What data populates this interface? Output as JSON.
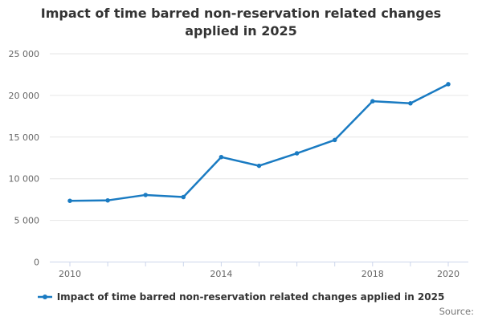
{
  "title": "Impact of time barred non-reservation related changes applied in 2025",
  "legend": {
    "label": "Impact of time barred non-reservation related changes applied in 2025"
  },
  "source_label": "Source:",
  "colors": {
    "line": "#1a7bc2",
    "grid": "#e6e6e6",
    "axis": "#ccd6eb",
    "tick_label": "#666666",
    "title": "#333333",
    "legend_text": "#333333",
    "source": "#777777"
  },
  "chart_data": {
    "type": "line",
    "title": "Impact of time barred non-reservation related changes applied in 2025",
    "x": [
      2010,
      2011,
      2012,
      2013,
      2014,
      2015,
      2016,
      2017,
      2018,
      2019,
      2020
    ],
    "series": [
      {
        "name": "Impact of time barred non-reservation related changes applied in 2025",
        "values": [
          7350,
          7400,
          8050,
          7800,
          12600,
          11550,
          13050,
          14650,
          19300,
          19050,
          21350
        ]
      }
    ],
    "xlabel": "",
    "ylabel": "",
    "ylim": [
      0,
      25000
    ],
    "yticks": [
      0,
      5000,
      10000,
      15000,
      20000,
      25000
    ],
    "ytick_labels": [
      "0",
      "5 000",
      "10 000",
      "15 000",
      "20 000",
      "25 000"
    ],
    "xticks_all_years": [
      2010,
      2011,
      2012,
      2013,
      2014,
      2015,
      2016,
      2017,
      2018,
      2019,
      2020
    ],
    "xtick_labels_visible": [
      "2010",
      "2014",
      "2018",
      "2020"
    ],
    "grid": "horizontal",
    "legend_position": "bottom-center"
  }
}
